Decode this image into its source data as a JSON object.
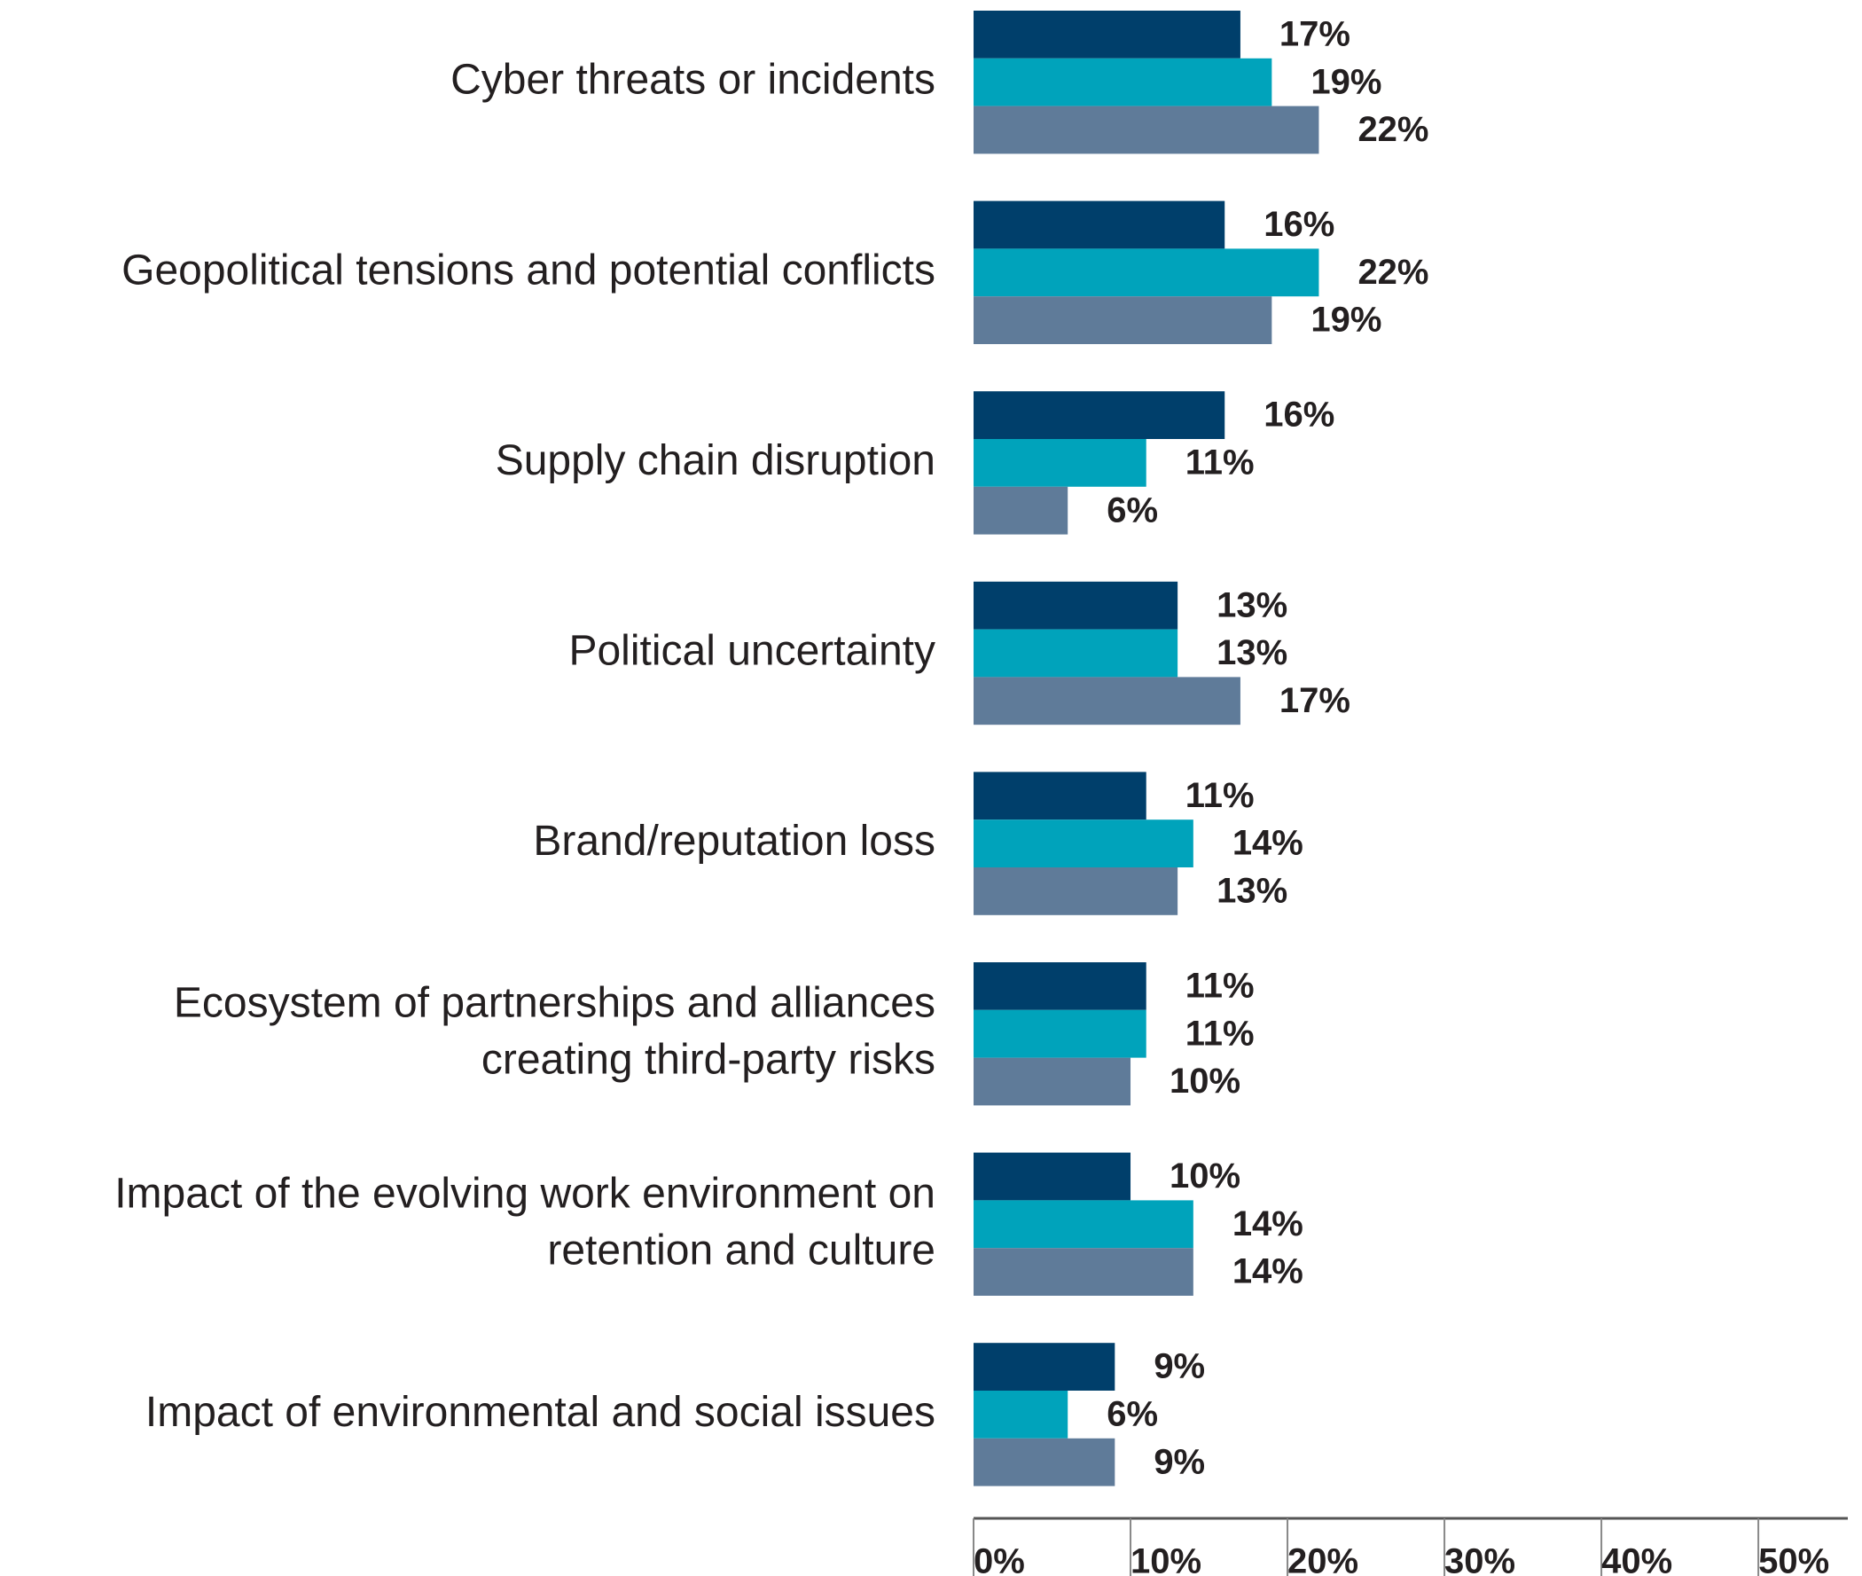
{
  "chart_data": {
    "type": "barh",
    "categories": [
      "Cyber threats or incidents",
      "Geopolitical tensions and potential conflicts",
      "Supply chain disruption",
      "Political uncertainty",
      "Brand/reputation loss",
      "Ecosystem of partnerships and alliances\ncreating third-party risks",
      "Impact of the evolving work environment on\nretention and culture",
      "Impact of environmental and social issues"
    ],
    "series": [
      {
        "color": "#003f6b",
        "values": [
          17,
          16,
          16,
          13,
          11,
          11,
          10,
          9
        ],
        "value_labels": [
          "17%",
          "16%",
          "16%",
          "13%",
          "11%",
          "11%",
          "10%",
          "9%"
        ]
      },
      {
        "color": "#00a3bb",
        "values": [
          19,
          22,
          11,
          13,
          14,
          11,
          14,
          6
        ],
        "value_labels": [
          "19%",
          "22%",
          "11%",
          "13%",
          "14%",
          "11%",
          "14%",
          "6%"
        ]
      },
      {
        "color": "#5f7b99",
        "values": [
          22,
          19,
          6,
          17,
          13,
          10,
          14,
          9
        ],
        "value_labels": [
          "22%",
          "19%",
          "6%",
          "17%",
          "13%",
          "10%",
          "14%",
          "9%"
        ]
      }
    ],
    "xlim": [
      0,
      55.7
    ],
    "xticks": [
      {
        "value": 0,
        "label": "0%"
      },
      {
        "value": 10,
        "label": "10%"
      },
      {
        "value": 20,
        "label": "20%"
      },
      {
        "value": 30,
        "label": "30%"
      },
      {
        "value": 40,
        "label": "40%"
      },
      {
        "value": 50,
        "label": "50%"
      }
    ]
  }
}
